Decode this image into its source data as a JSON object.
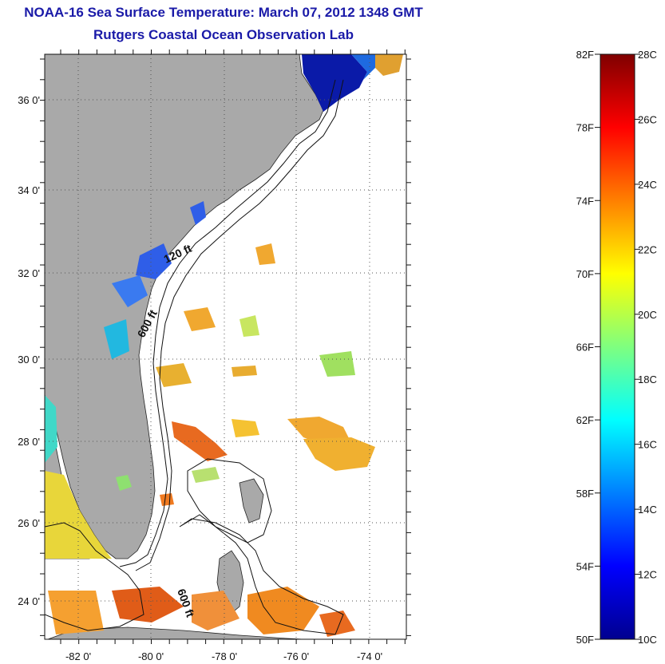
{
  "title": "NOAA-16 Sea Surface Temperature:  March 07, 2012 1348 GMT",
  "subtitle": "Rutgers Coastal Ocean Observation Lab",
  "map": {
    "lat_labels": [
      "36 0'",
      "34 0'",
      "32 0'",
      "30 0'",
      "28 0'",
      "26 0'",
      "24 0'"
    ],
    "lon_labels": [
      "-82 0'",
      "-80 0'",
      "-78 0'",
      "-76 0'",
      "-74 0'"
    ],
    "contour_labels": [
      "120 ft",
      "600 ft",
      "600 ft"
    ],
    "land_color": "#a9a9a9"
  },
  "colorbar": {
    "f_labels": [
      "82F",
      "78F",
      "74F",
      "70F",
      "66F",
      "62F",
      "58F",
      "54F",
      "50F"
    ],
    "c_labels": [
      "28C",
      "26C",
      "24C",
      "22C",
      "20C",
      "18C",
      "16C",
      "14C",
      "12C",
      "10C"
    ],
    "range_c": [
      10,
      28
    ],
    "range_f": [
      50,
      82
    ]
  }
}
